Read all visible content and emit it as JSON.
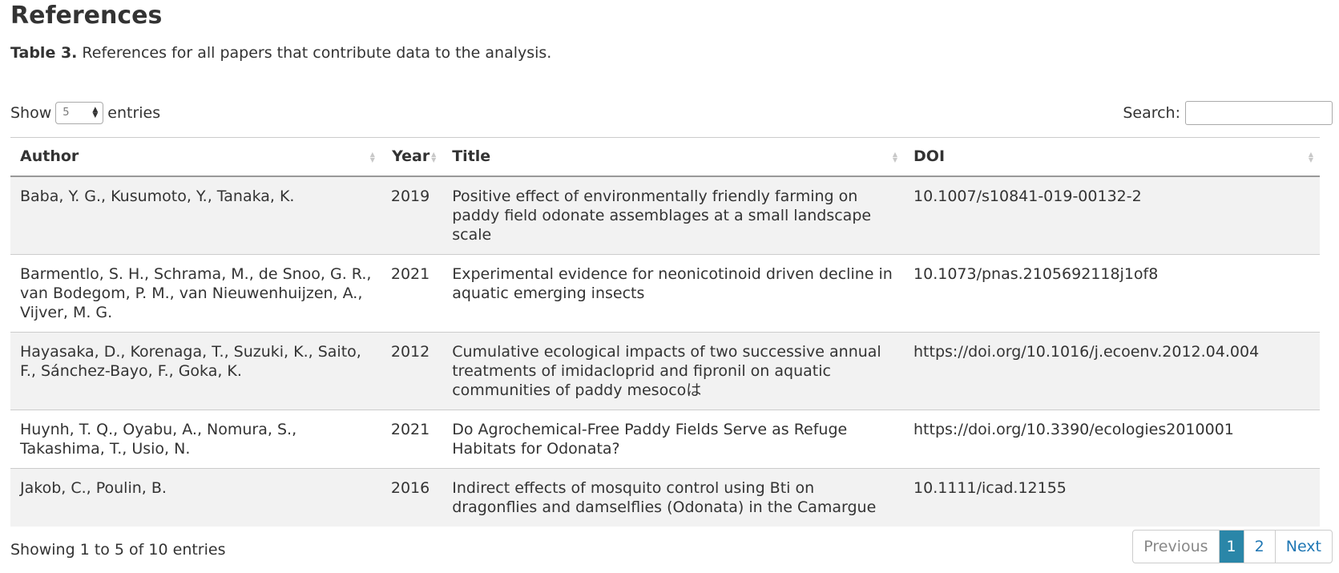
{
  "heading": "References",
  "caption": {
    "label": "Table 3.",
    "text": " References for all papers that contribute data to the analysis."
  },
  "length_control": {
    "prefix": "Show",
    "value": "5",
    "suffix": "entries"
  },
  "search": {
    "label": "Search:",
    "value": ""
  },
  "table": {
    "columns": [
      "Author",
      "Year",
      "Title",
      "DOI"
    ],
    "rows": [
      {
        "author": "Baba, Y. G., Kusumoto, Y., Tanaka, K.",
        "year": "2019",
        "title": "Positive effect of environmentally friendly farming on paddy field odonate assemblages at a small landscape scale",
        "doi": "10.1007/s10841-019-00132-2"
      },
      {
        "author": "Barmentlo, S. H., Schrama, M., de Snoo, G. R., van Bodegom, P. M., van Nieuwenhuijzen, A., Vijver, M. G.",
        "year": "2021",
        "title": "Experimental evidence for neonicotinoid driven decline in aquatic emerging insects",
        "doi": "10.1073/pnas.2105692118j1of8"
      },
      {
        "author": "Hayasaka, D., Korenaga, T., Suzuki, K., Saito, F., Sánchez-Bayo, F., Goka, K.",
        "year": "2012",
        "title": "Cumulative ecological impacts of two successive annual treatments of imidacloprid and fipronil on aquatic communities of paddy mesocoは",
        "doi": "https://doi.org/10.1016/j.ecoenv.2012.04.004"
      },
      {
        "author": "Huynh, T. Q., Oyabu, A., Nomura, S., Takashima, T., Usio, N.",
        "year": "2021",
        "title": "Do Agrochemical-Free Paddy Fields Serve as Refuge Habitats for Odonata?",
        "doi": "https://doi.org/10.3390/ecologies2010001"
      },
      {
        "author": "Jakob, C., Poulin, B.",
        "year": "2016",
        "title": "Indirect effects of mosquito control using Bti on dragonflies and damselflies (Odonata) in the Camargue",
        "doi": "10.1111/icad.12155"
      }
    ]
  },
  "info": "Showing 1 to 5 of 10 entries",
  "pagination": {
    "previous": "Previous",
    "pages": [
      "1",
      "2"
    ],
    "next": "Next"
  },
  "colors": {
    "accent": "#2a86a8",
    "link": "#1f77b4",
    "stripe": "#f2f2f2"
  }
}
